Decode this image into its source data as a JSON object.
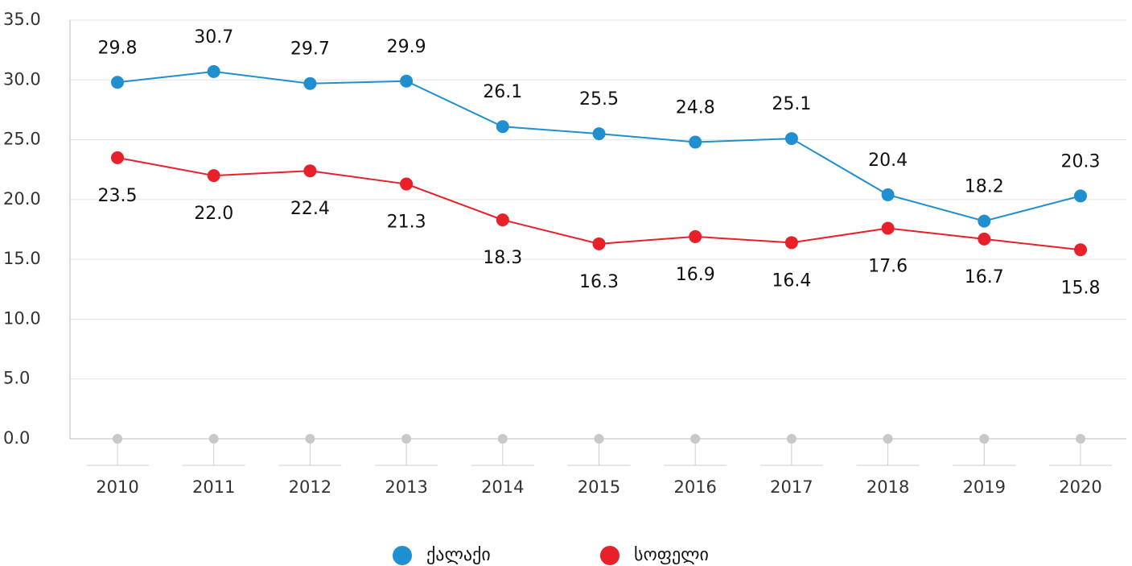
{
  "chart_data": {
    "type": "line",
    "categories": [
      "2010",
      "2011",
      "2012",
      "2013",
      "2014",
      "2015",
      "2016",
      "2017",
      "2018",
      "2019",
      "2020"
    ],
    "series": [
      {
        "name": "ქალაქი",
        "color": "#1f8fd0",
        "values": [
          29.8,
          30.7,
          29.7,
          29.9,
          26.1,
          25.5,
          24.8,
          25.1,
          20.4,
          18.2,
          20.3
        ],
        "value_labels": [
          "29.8",
          "30.7",
          "29.7",
          "29.9",
          "26.1",
          "25.5",
          "24.8",
          "25.1",
          "20.4",
          "18.2",
          "20.3"
        ]
      },
      {
        "name": "სოფელი",
        "color": "#e8202a",
        "values": [
          23.5,
          22.0,
          22.4,
          21.3,
          18.3,
          16.3,
          16.9,
          16.4,
          17.6,
          16.7,
          15.8
        ],
        "value_labels": [
          "23.5",
          "22.0",
          "22.4",
          "21.3",
          "18.3",
          "16.3",
          "16.9",
          "16.4",
          "17.6",
          "16.7",
          "15.8"
        ]
      }
    ],
    "ylim": [
      0,
      35
    ],
    "yticks": [
      {
        "value": 0,
        "label": "0.0"
      },
      {
        "value": 5,
        "label": "5.0"
      },
      {
        "value": 10,
        "label": "10.0"
      },
      {
        "value": 15,
        "label": "15.0"
      },
      {
        "value": 20,
        "label": "20.0"
      },
      {
        "value": 25,
        "label": "25.0"
      },
      {
        "value": 30,
        "label": "30.0"
      },
      {
        "value": 35,
        "label": "35.0"
      }
    ],
    "grid": true,
    "legend": "bottom"
  }
}
